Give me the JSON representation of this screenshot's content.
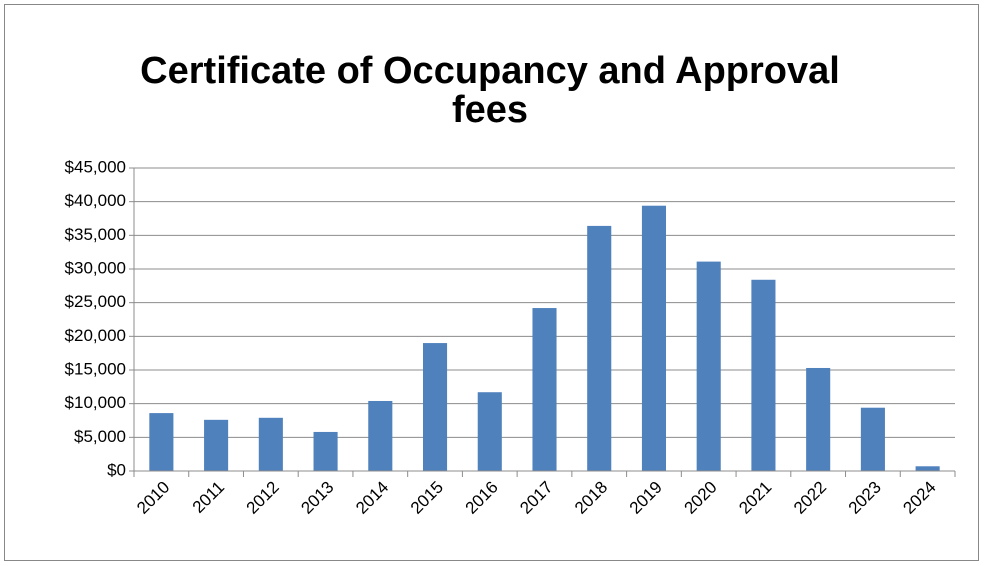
{
  "chart_data": {
    "type": "bar",
    "title_lines": [
      "Certificate of Occupancy and Approval",
      "fees"
    ],
    "categories": [
      "2010",
      "2011",
      "2012",
      "2013",
      "2014",
      "2015",
      "2016",
      "2017",
      "2018",
      "2019",
      "2020",
      "2021",
      "2022",
      "2023",
      "2024"
    ],
    "values": [
      8600,
      7600,
      7900,
      5800,
      10400,
      19000,
      11700,
      24200,
      36400,
      39400,
      31100,
      28400,
      15300,
      9400,
      700
    ],
    "color": "#4f81bd",
    "ylim": [
      0,
      45000
    ],
    "yticks": [
      {
        "value": 0,
        "label": "$0"
      },
      {
        "value": 5000,
        "label": "$5,000"
      },
      {
        "value": 10000,
        "label": "$10,000"
      },
      {
        "value": 15000,
        "label": "$15,000"
      },
      {
        "value": 20000,
        "label": "$20,000"
      },
      {
        "value": 25000,
        "label": "$25,000"
      },
      {
        "value": 30000,
        "label": "$30,000"
      },
      {
        "value": 35000,
        "label": "$35,000"
      },
      {
        "value": 40000,
        "label": "$40,000"
      },
      {
        "value": 45000,
        "label": "$45,000"
      }
    ],
    "grid": true
  }
}
